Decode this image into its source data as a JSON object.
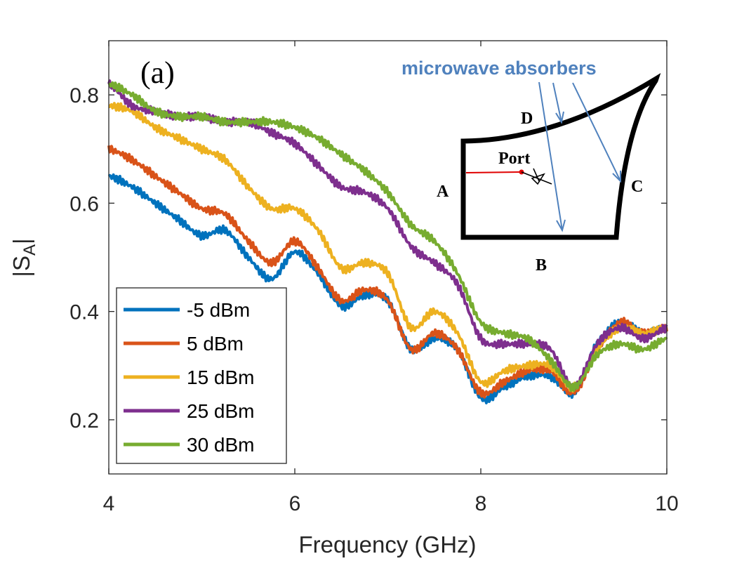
{
  "chart_data": {
    "type": "line",
    "title": "",
    "panel_label": "(a)",
    "xlabel": "Frequency (GHz)",
    "ylabel_main": "|S",
    "ylabel_sub": "A",
    "ylabel_close": "|",
    "xlim": [
      4,
      10
    ],
    "ylim": [
      0.1,
      0.9
    ],
    "xticks": [
      4,
      6,
      8,
      10
    ],
    "yticks": [
      0.2,
      0.4,
      0.6,
      0.8
    ],
    "xtick_labels": [
      "4",
      "6",
      "8",
      "10"
    ],
    "ytick_labels": [
      "0.2",
      "0.4",
      "0.6",
      "0.8"
    ],
    "grid": false,
    "legend_position": "bottom-left",
    "x": [
      4.0,
      4.25,
      4.5,
      4.75,
      5.0,
      5.25,
      5.5,
      5.75,
      6.0,
      6.25,
      6.5,
      6.75,
      7.0,
      7.25,
      7.5,
      7.75,
      8.0,
      8.25,
      8.5,
      8.75,
      9.0,
      9.25,
      9.5,
      9.75,
      10.0
    ],
    "series": [
      {
        "name": "-5 dBm",
        "color": "#0072BD",
        "values": [
          0.65,
          0.63,
          0.6,
          0.57,
          0.54,
          0.55,
          0.5,
          0.46,
          0.51,
          0.47,
          0.41,
          0.43,
          0.42,
          0.33,
          0.35,
          0.33,
          0.24,
          0.26,
          0.28,
          0.28,
          0.25,
          0.34,
          0.38,
          0.36,
          0.37
        ]
      },
      {
        "name": "5 dBm",
        "color": "#D95319",
        "values": [
          0.7,
          0.68,
          0.65,
          0.62,
          0.59,
          0.58,
          0.53,
          0.49,
          0.53,
          0.48,
          0.42,
          0.44,
          0.42,
          0.33,
          0.36,
          0.33,
          0.25,
          0.27,
          0.29,
          0.29,
          0.25,
          0.33,
          0.38,
          0.36,
          0.37
        ]
      },
      {
        "name": "15 dBm",
        "color": "#EDB120",
        "values": [
          0.78,
          0.77,
          0.74,
          0.72,
          0.7,
          0.68,
          0.63,
          0.59,
          0.59,
          0.55,
          0.48,
          0.49,
          0.47,
          0.37,
          0.4,
          0.36,
          0.27,
          0.29,
          0.3,
          0.3,
          0.26,
          0.33,
          0.37,
          0.36,
          0.37
        ]
      },
      {
        "name": "25 dBm",
        "color": "#7E2F8E",
        "values": [
          0.82,
          0.78,
          0.77,
          0.76,
          0.76,
          0.75,
          0.75,
          0.73,
          0.71,
          0.67,
          0.63,
          0.62,
          0.59,
          0.52,
          0.49,
          0.45,
          0.35,
          0.34,
          0.34,
          0.33,
          0.26,
          0.34,
          0.37,
          0.35,
          0.37
        ]
      },
      {
        "name": "30 dBm",
        "color": "#77AC30",
        "values": [
          0.82,
          0.8,
          0.77,
          0.76,
          0.76,
          0.75,
          0.75,
          0.75,
          0.74,
          0.72,
          0.69,
          0.66,
          0.62,
          0.56,
          0.53,
          0.47,
          0.38,
          0.36,
          0.35,
          0.31,
          0.26,
          0.32,
          0.34,
          0.33,
          0.35
        ]
      }
    ],
    "inset": {
      "title": "microwave absorbers",
      "title_color": "#4F81BD",
      "port_label": "Port",
      "labels": {
        "A": "A",
        "B": "B",
        "C": "C",
        "D": "D"
      }
    }
  }
}
